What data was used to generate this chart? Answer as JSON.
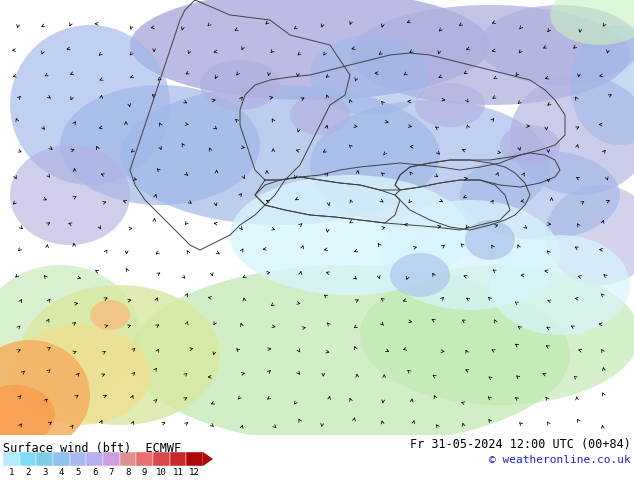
{
  "title_left": "Surface wind (bft)  ECMWF",
  "title_right": "Fr 31-05-2024 12:00 UTC (00+84)",
  "copyright": "© weatheronline.co.uk",
  "colorbar_labels": [
    "1",
    "2",
    "3",
    "4",
    "5",
    "6",
    "7",
    "8",
    "9",
    "10",
    "11",
    "12"
  ],
  "colorbar_colors": [
    "#b0ecfc",
    "#80dcf4",
    "#80cce8",
    "#90c0ec",
    "#a8b8f0",
    "#b8aef0",
    "#cc9ee0",
    "#e09090",
    "#e87070",
    "#d84848",
    "#c82828",
    "#b00808"
  ],
  "background_color": "#ffffff",
  "fig_width": 6.34,
  "fig_height": 4.9,
  "dpi": 100,
  "text_color": "#000000",
  "map_base_color": "#80ecfc",
  "map_light_blue": "#b0ecfc",
  "map_medium_blue": "#a0b8e8",
  "map_purple_blue": "#b0b0e0",
  "map_green": "#c0e8b0",
  "map_yellow_green": "#e0eaa0",
  "map_yellow": "#f0e090",
  "map_orange": "#f4b060",
  "border_color": "#404040"
}
